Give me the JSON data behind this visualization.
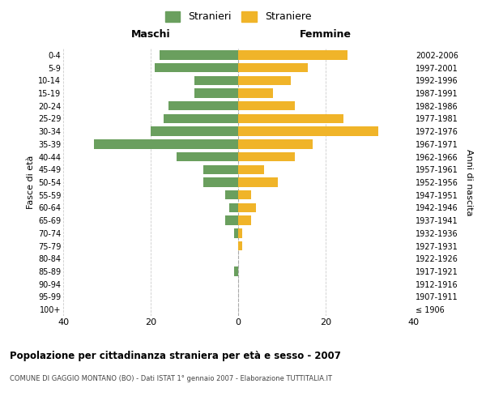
{
  "age_groups": [
    "100+",
    "95-99",
    "90-94",
    "85-89",
    "80-84",
    "75-79",
    "70-74",
    "65-69",
    "60-64",
    "55-59",
    "50-54",
    "45-49",
    "40-44",
    "35-39",
    "30-34",
    "25-29",
    "20-24",
    "15-19",
    "10-14",
    "5-9",
    "0-4"
  ],
  "birth_years": [
    "≤ 1906",
    "1907-1911",
    "1912-1916",
    "1917-1921",
    "1922-1926",
    "1927-1931",
    "1932-1936",
    "1937-1941",
    "1942-1946",
    "1947-1951",
    "1952-1956",
    "1957-1961",
    "1962-1966",
    "1967-1971",
    "1972-1976",
    "1977-1981",
    "1982-1986",
    "1987-1991",
    "1992-1996",
    "1997-2001",
    "2002-2006"
  ],
  "maschi": [
    0,
    0,
    0,
    1,
    0,
    0,
    1,
    3,
    2,
    3,
    8,
    8,
    14,
    33,
    20,
    17,
    16,
    10,
    10,
    19,
    18
  ],
  "femmine": [
    0,
    0,
    0,
    0,
    0,
    1,
    1,
    3,
    4,
    3,
    9,
    6,
    13,
    17,
    32,
    24,
    13,
    8,
    12,
    16,
    25
  ],
  "maschi_color": "#6a9f5e",
  "femmine_color": "#f0b429",
  "background_color": "#ffffff",
  "grid_color": "#cccccc",
  "title": "Popolazione per cittadinanza straniera per età e sesso - 2007",
  "subtitle": "COMUNE DI GAGGIO MONTANO (BO) - Dati ISTAT 1° gennaio 2007 - Elaborazione TUTTITALIA.IT",
  "xlabel_left": "Maschi",
  "xlabel_right": "Femmine",
  "ylabel_left": "Fasce di età",
  "ylabel_right": "Anni di nascita",
  "legend_stranieri": "Stranieri",
  "legend_straniere": "Straniere",
  "xlim": 40,
  "xticks": [
    -40,
    -20,
    0,
    20,
    40
  ],
  "xticklabels": [
    "40",
    "20",
    "0",
    "20",
    "40"
  ]
}
